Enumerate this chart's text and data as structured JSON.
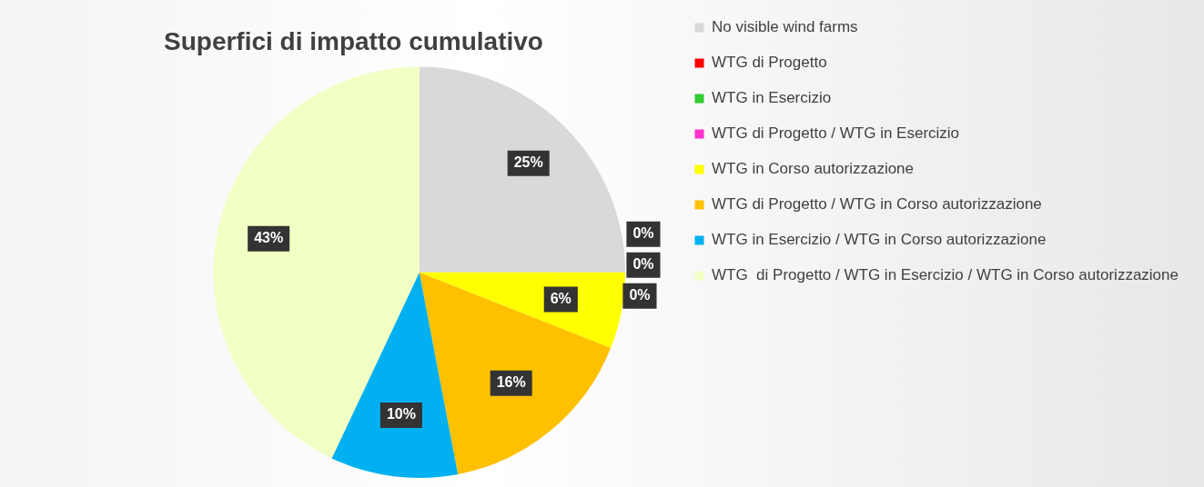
{
  "chart_data": {
    "type": "pie",
    "title": "Superfici di impatto cumulativo",
    "categories": [
      "No visible wind farms",
      "WTG di Progetto",
      "WTG in Esercizio",
      "WTG di Progetto / WTG in Esercizio",
      "WTG in Corso autorizzazione",
      "WTG di Progetto / WTG in Corso autorizzazione",
      "WTG in Esercizio / WTG in Corso autorizzazione",
      "WTG  di Progetto / WTG in Esercizio / WTG in Corso autorizzazione"
    ],
    "values": [
      25,
      0,
      0,
      0,
      6,
      16,
      10,
      43
    ],
    "colors": [
      "#d9d9d9",
      "#ff0000",
      "#33cc33",
      "#ff33cc",
      "#ffff00",
      "#ffc000",
      "#00b0f0",
      "#f2ffc4"
    ],
    "value_labels": [
      "25%",
      "0%",
      "0%",
      "0%",
      "6%",
      "16%",
      "10%",
      "43%"
    ],
    "legend": "right"
  }
}
